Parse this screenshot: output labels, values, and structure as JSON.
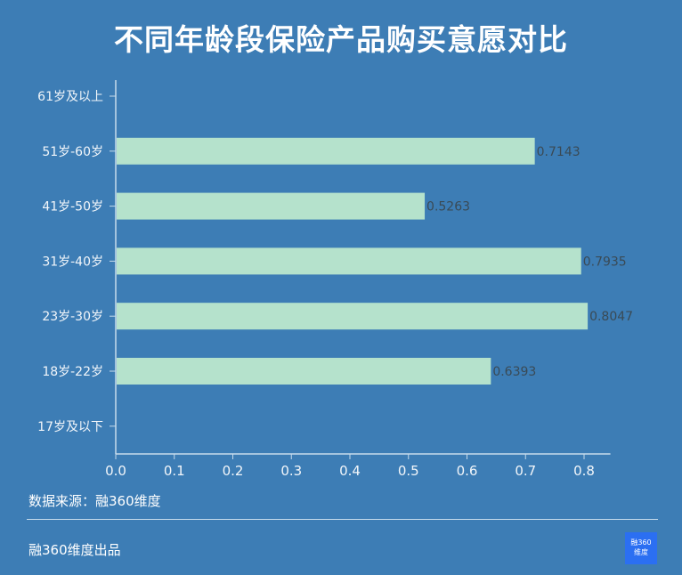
{
  "chart_data": {
    "type": "bar",
    "orientation": "horizontal",
    "title": "不同年龄段保险产品购买意愿对比",
    "categories": [
      "61岁及以上",
      "51岁-60岁",
      "41岁-50岁",
      "31岁-40岁",
      "23岁-30岁",
      "18岁-22岁",
      "17岁及以下"
    ],
    "values": [
      null,
      0.7143,
      0.5263,
      0.7935,
      0.8047,
      0.6393,
      null
    ],
    "data_labels": [
      "",
      "0.7143",
      "0.5263",
      "0.7935",
      "0.8047",
      "0.6393",
      ""
    ],
    "xlim": [
      0,
      0.85
    ],
    "xticks": [
      "0.0",
      "0.1",
      "0.2",
      "0.3",
      "0.4",
      "0.5",
      "0.6",
      "0.7",
      "0.8"
    ],
    "xlabel": "",
    "ylabel": "",
    "grid": false,
    "colors": {
      "background": "#3d7db5",
      "bar": "#b5e2cc"
    }
  },
  "source": "数据来源：融360维度",
  "footer": "融360维度出品",
  "logo_text": "融360维度"
}
